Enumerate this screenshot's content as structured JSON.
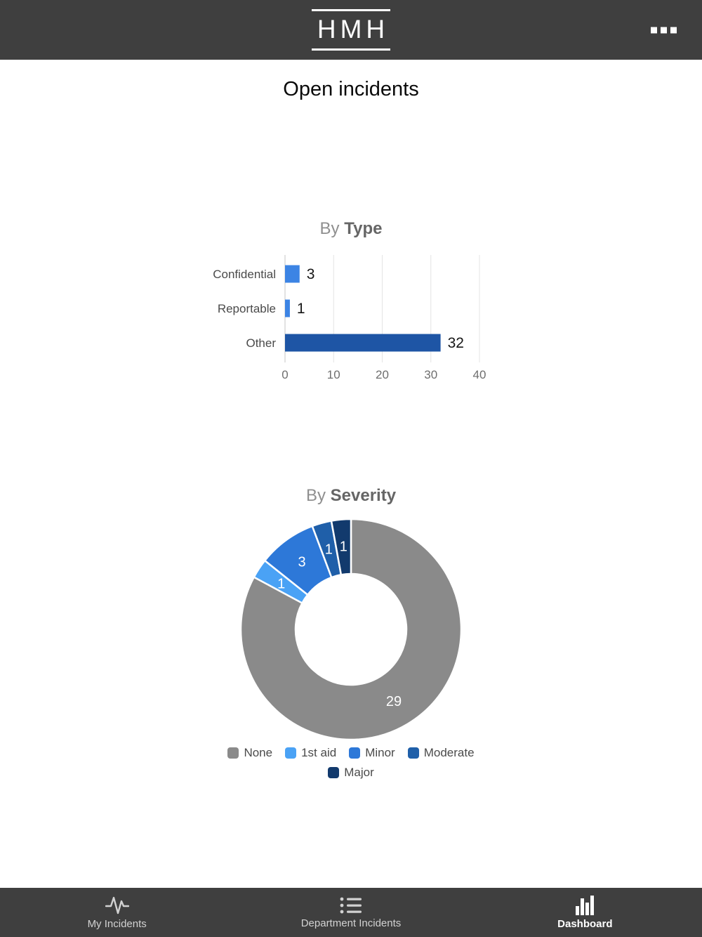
{
  "header": {
    "logo_text": "HMH"
  },
  "page_title": "Open incidents",
  "charts": {
    "by_type": {
      "title_prefix": "By",
      "title_bold": "Type"
    },
    "by_severity": {
      "title_prefix": "By",
      "title_bold": "Severity"
    }
  },
  "chart_data": [
    {
      "type": "bar",
      "orientation": "horizontal",
      "title": "By Type",
      "categories": [
        "Confidential",
        "Reportable",
        "Other"
      ],
      "values": [
        3,
        1,
        32
      ],
      "colors": [
        "#3c84e4",
        "#3c84e4",
        "#1e55a5"
      ],
      "xlim": [
        0,
        40
      ],
      "xticks": [
        0,
        10,
        20,
        30,
        40
      ],
      "grid": true,
      "value_labels": true,
      "legend_position": "none"
    },
    {
      "type": "pie",
      "subtype": "donut",
      "title": "By Severity",
      "categories": [
        "None",
        "1st aid",
        "Minor",
        "Moderate",
        "Major"
      ],
      "values": [
        29,
        1,
        3,
        1,
        1
      ],
      "colors": [
        "#8a8a8a",
        "#4aa2f5",
        "#2d78d8",
        "#1f5fa9",
        "#123a6d"
      ],
      "start_angle": "top",
      "direction": "clockwise",
      "legend_position": "bottom",
      "value_labels": true
    }
  ],
  "bottom_nav": {
    "items": [
      {
        "label": "My Incidents",
        "icon": "pulse-icon",
        "active": false
      },
      {
        "label": "Department Incidents",
        "icon": "list-icon",
        "active": false
      },
      {
        "label": "Dashboard",
        "icon": "bar-chart-icon",
        "active": true
      }
    ]
  }
}
